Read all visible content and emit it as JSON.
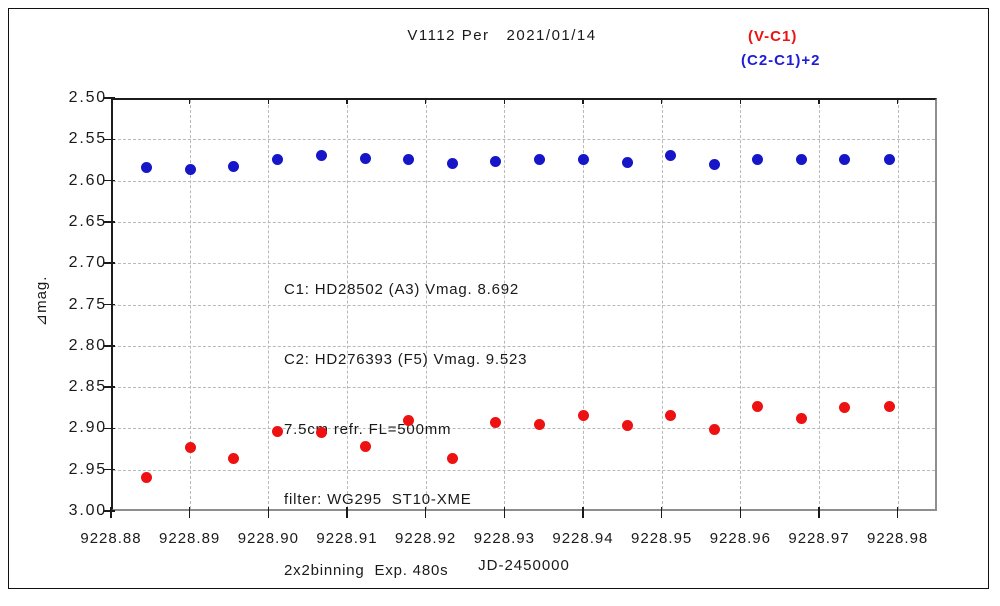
{
  "title": "V1112 Per   2021/01/14",
  "legend": {
    "items": [
      {
        "label": "(V-C1)",
        "color": "#ee1111"
      },
      {
        "label": "(C2-C1)+2",
        "color": "#1d1dd8"
      }
    ]
  },
  "annotation": {
    "lines": [
      "C1: HD28502 (A3) Vmag. 8.692",
      "C2: HD276393 (F5) Vmag. 9.523",
      "7.5cm refr. FL=500mm",
      "filter: WG295  ST10-XME",
      "2x2binning  Exp. 480s"
    ]
  },
  "axes": {
    "x_label": "JD-2450000",
    "y_label": "⊿mag."
  },
  "colors": {
    "grid": "#b9b9b9",
    "axis_text": "#1a1a1a",
    "red_series": "#ee1111",
    "blue_series": "#1616c8"
  },
  "chart_data": {
    "type": "scatter",
    "title": "V1112 Per 2021/01/14",
    "xlabel": "JD-2450000",
    "ylabel": "⊿mag.",
    "x_axis_range": [
      9228.88,
      9228.985
    ],
    "y_axis_range_top_to_bottom": [
      2.5,
      3.0
    ],
    "y_axis_inverted": true,
    "grid": "dashed",
    "legend_position": "top-right-outside",
    "xticks": [
      9228.88,
      9228.89,
      9228.9,
      9228.91,
      9228.92,
      9228.93,
      9228.94,
      9228.95,
      9228.96,
      9228.97,
      9228.98
    ],
    "yticks": [
      2.5,
      2.55,
      2.6,
      2.65,
      2.7,
      2.75,
      2.8,
      2.85,
      2.9,
      2.95,
      3.0
    ],
    "x": [
      9228.8845,
      9228.8901,
      9228.8956,
      9228.9012,
      9228.9067,
      9228.9123,
      9228.9178,
      9228.9234,
      9228.9289,
      9228.9345,
      9228.94,
      9228.9456,
      9228.9511,
      9228.9567,
      9228.9622,
      9228.9678,
      9228.9733,
      9228.9789
    ],
    "series": [
      {
        "name": "(V-C1)",
        "color": "#ee1111",
        "marker": "filled-circle",
        "values": [
          2.96,
          2.923,
          2.936,
          2.904,
          2.905,
          2.922,
          2.89,
          2.937,
          2.893,
          2.895,
          2.884,
          2.896,
          2.884,
          2.901,
          2.873,
          2.888,
          2.875,
          2.873
        ]
      },
      {
        "name": "(C2-C1)+2",
        "color": "#1616c8",
        "marker": "filled-circle",
        "values": [
          2.584,
          2.587,
          2.583,
          2.574,
          2.57,
          2.573,
          2.574,
          2.579,
          2.577,
          2.574,
          2.575,
          2.578,
          2.57,
          2.581,
          2.574,
          2.574,
          2.574,
          2.575
        ]
      }
    ]
  }
}
